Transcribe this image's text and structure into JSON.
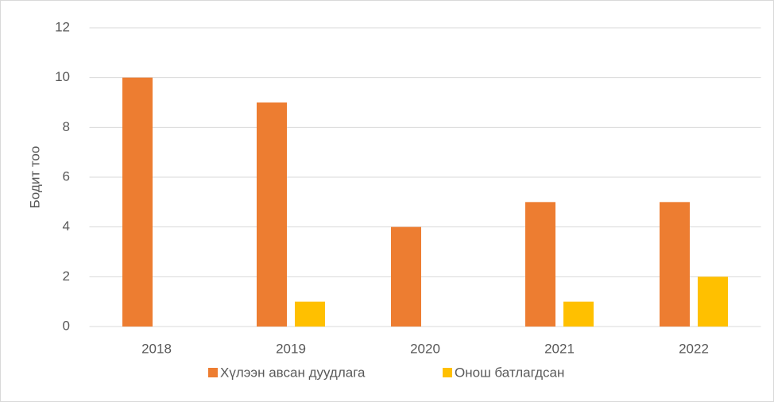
{
  "chart_data": {
    "type": "bar",
    "categories": [
      "2018",
      "2019",
      "2020",
      "2021",
      "2022"
    ],
    "series": [
      {
        "name": "Хүлээн авсан дуудлага",
        "color": "#ED7D31",
        "values": [
          10,
          9,
          4,
          5,
          5
        ]
      },
      {
        "name": "Онош батлагдсан",
        "color": "#FFC000",
        "values": [
          0,
          1,
          0,
          1,
          2
        ]
      }
    ],
    "ylabel": "Бодит тоо",
    "ylim": [
      0,
      12
    ],
    "yticks": [
      0,
      2,
      4,
      6,
      8,
      10,
      12
    ],
    "grid": true,
    "legend": "bottom"
  }
}
